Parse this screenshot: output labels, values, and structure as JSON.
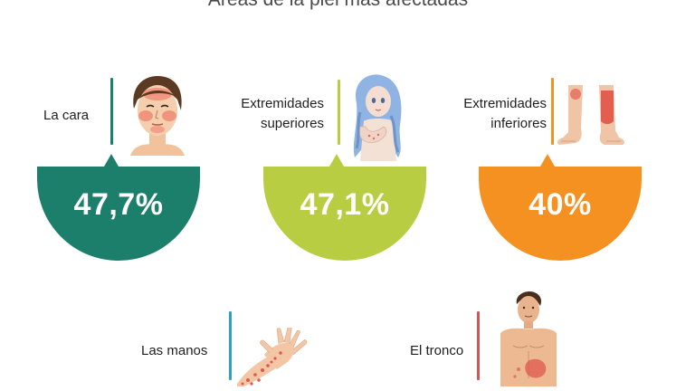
{
  "title": "Áreas de la piel más afectadas",
  "areas": [
    {
      "label": "La cara",
      "value": "47,7%",
      "color": "#1c7f6c",
      "icon": "face-icon"
    },
    {
      "label_lines": [
        "Extremidades",
        "superiores"
      ],
      "value": "47,1%",
      "color": "#b9cd43",
      "icon": "upper-limbs-icon"
    },
    {
      "label_lines": [
        "Extremidades",
        "inferiores"
      ],
      "value": "40%",
      "color": "#f49121",
      "icon": "lower-limbs-icon"
    },
    {
      "label": "Las manos",
      "color": "#2aa3c6",
      "icon": "hand-icon"
    },
    {
      "label": "El tronco",
      "color": "#d9534f",
      "icon": "torso-icon"
    }
  ]
}
